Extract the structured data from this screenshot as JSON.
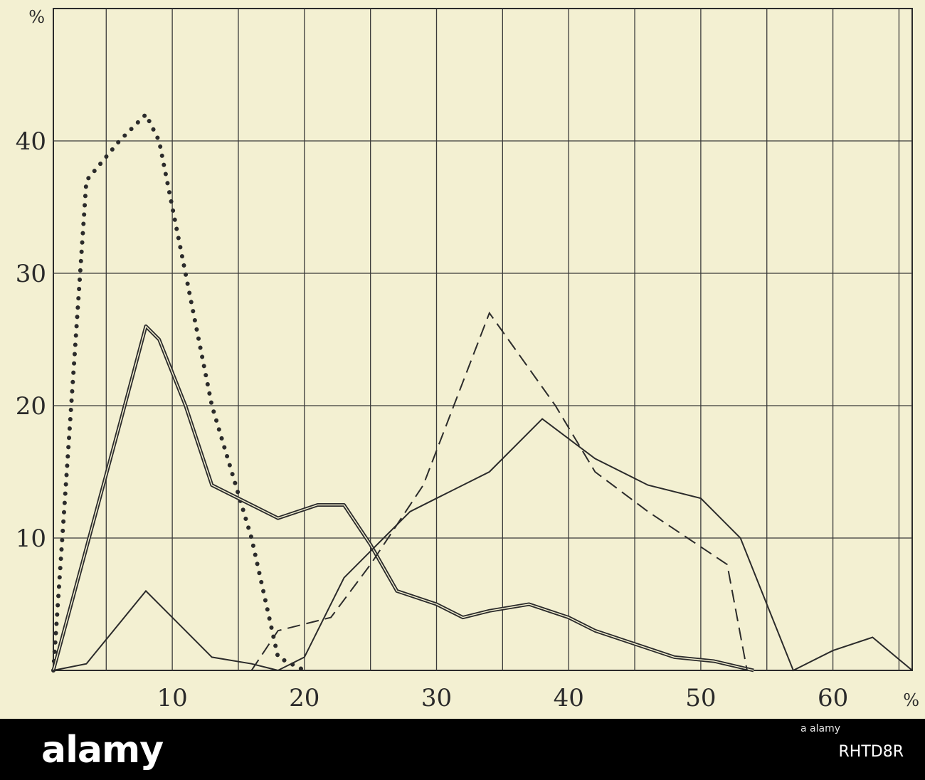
{
  "chart_data": {
    "type": "line",
    "title": "",
    "xlabel": "%",
    "ylabel": "%",
    "xlim": [
      1,
      66
    ],
    "ylim": [
      0,
      50
    ],
    "x_ticks": [
      10,
      20,
      30,
      40,
      50,
      60
    ],
    "y_ticks": [
      10,
      20,
      30,
      40
    ],
    "grid": true,
    "series": [
      {
        "style": "dotted",
        "color": "#2b2b2b",
        "x": [
          1,
          3.5,
          6,
          8,
          9,
          13,
          16,
          18,
          20
        ],
        "y": [
          0,
          37,
          40,
          42,
          40,
          20,
          10,
          1,
          0
        ]
      },
      {
        "style": "double",
        "color": "#2b2b2b",
        "x": [
          1,
          6,
          8,
          9,
          11,
          13,
          16,
          18,
          21,
          23,
          25,
          27,
          30,
          32,
          34,
          37,
          40,
          42,
          45,
          48,
          51,
          54
        ],
        "y": [
          0,
          18.5,
          26,
          25,
          20,
          14,
          12.5,
          11.5,
          12.5,
          12.5,
          9.5,
          6,
          5,
          4,
          4.5,
          5,
          4,
          3,
          2,
          1,
          0.7,
          0
        ]
      },
      {
        "style": "dashed",
        "color": "#2b2b2b",
        "x": [
          16,
          18,
          22,
          25,
          29,
          34,
          39,
          42,
          46,
          49,
          52,
          53.5
        ],
        "y": [
          0,
          3,
          4,
          8,
          14,
          27,
          20,
          15,
          12,
          10,
          8,
          0
        ]
      },
      {
        "style": "solid",
        "color": "#2b2b2b",
        "x": [
          1,
          3.5,
          8,
          13,
          16,
          18,
          20,
          23,
          26,
          28,
          30,
          34,
          38,
          42,
          46,
          50,
          53,
          55,
          57,
          60,
          63,
          66
        ],
        "y": [
          0,
          0.5,
          6,
          1,
          0.5,
          0,
          1,
          7,
          10,
          12,
          13,
          15,
          19,
          16,
          14,
          13,
          10,
          5,
          0,
          1.5,
          2.5,
          0
        ]
      }
    ]
  },
  "footer": {
    "logo_text": "alamy",
    "site_text": "a alamy",
    "image_code": "RHTD8R"
  }
}
